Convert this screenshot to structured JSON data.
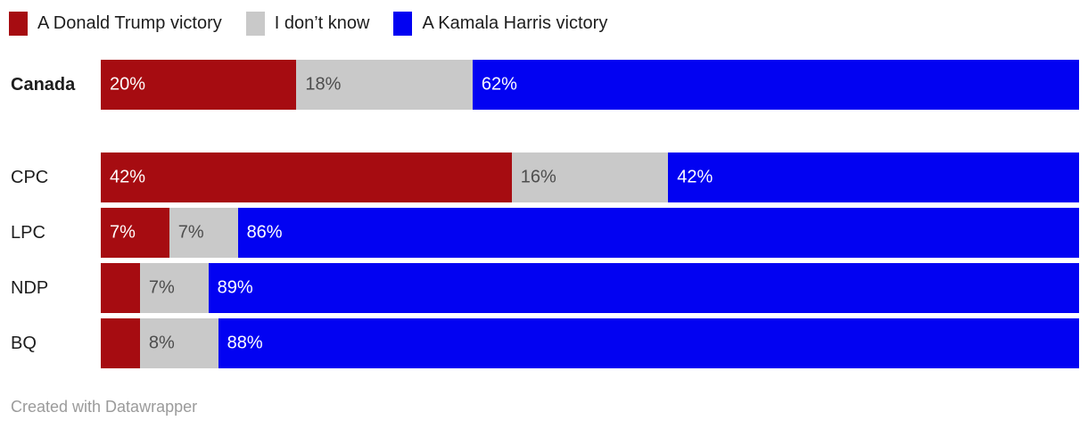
{
  "colors": {
    "trump_red": "#a60c11",
    "dont_know_gray": "#c9c9c9",
    "harris_blue": "#0202f2",
    "label_on_dark": "#ffffff",
    "label_on_gray": "#4d4d4d",
    "text_dark": "#1d1d1d",
    "footer_gray": "#9b9b9b"
  },
  "chart_data": {
    "type": "bar",
    "variant": "stacked-horizontal",
    "unit": "%",
    "xlim": [
      0,
      100
    ],
    "legend_position": "top",
    "grid": false,
    "categories": [
      "Canada",
      "CPC",
      "LPC",
      "NDP",
      "BQ"
    ],
    "series": [
      {
        "name": "A Donald Trump victory",
        "color": "#a60c11",
        "label_color": "#ffffff",
        "values": [
          20,
          42,
          7,
          4,
          4
        ]
      },
      {
        "name": "I don’t know",
        "color": "#c9c9c9",
        "label_color": "#4d4d4d",
        "values": [
          18,
          16,
          7,
          7,
          8
        ]
      },
      {
        "name": "A Kamala Harris victory",
        "color": "#0202f2",
        "label_color": "#ffffff",
        "values": [
          62,
          42,
          86,
          89,
          88
        ]
      }
    ],
    "rows": [
      {
        "label": "Canada",
        "bold": true,
        "segments": [
          {
            "value": 20,
            "text": "20%"
          },
          {
            "value": 18,
            "text": "18%"
          },
          {
            "value": 62,
            "text": "62%"
          }
        ]
      },
      {
        "label": "CPC",
        "bold": false,
        "segments": [
          {
            "value": 42,
            "text": "42%"
          },
          {
            "value": 16,
            "text": "16%"
          },
          {
            "value": 42,
            "text": "42%"
          }
        ]
      },
      {
        "label": "LPC",
        "bold": false,
        "segments": [
          {
            "value": 7,
            "text": "7%"
          },
          {
            "value": 7,
            "text": "7%"
          },
          {
            "value": 86,
            "text": "86%"
          }
        ]
      },
      {
        "label": "NDP",
        "bold": false,
        "segments": [
          {
            "value": 4,
            "text": ""
          },
          {
            "value": 7,
            "text": "7%"
          },
          {
            "value": 89,
            "text": "89%"
          }
        ]
      },
      {
        "label": "BQ",
        "bold": false,
        "segments": [
          {
            "value": 4,
            "text": ""
          },
          {
            "value": 8,
            "text": "8%"
          },
          {
            "value": 88,
            "text": "88%"
          }
        ]
      }
    ]
  },
  "footer": {
    "credit": "Created with Datawrapper"
  }
}
